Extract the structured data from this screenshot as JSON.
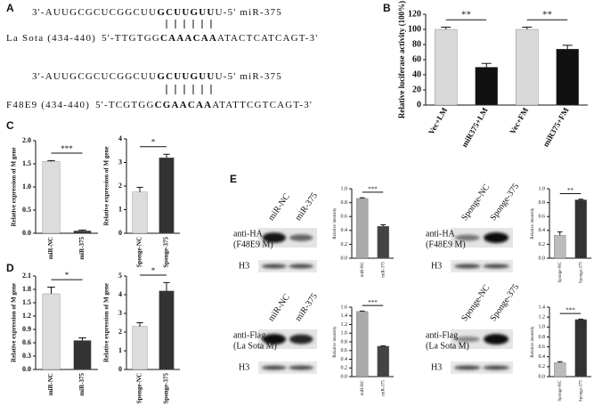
{
  "panel_labels": [
    "A",
    "B",
    "C",
    "D",
    "E"
  ],
  "panel_a": {
    "pairs": [
      {
        "mirna": {
          "prefix": "3'-AUUGCGCUCGGCUU",
          "seed": "GCUUGUU",
          "suffix": "U-5' miR-375"
        },
        "target": {
          "name": "La Sota (434-440)",
          "prefix": "5'-TTGTGG",
          "site": "CAAACAA",
          "suffix": "ATACTCATCAGT-3'"
        }
      },
      {
        "mirna": {
          "prefix": "3'-AUUGCGCUCGGCUU",
          "seed": "GCUUGUU",
          "suffix": "U-5' miR-375"
        },
        "target": {
          "name": "F48E9 (434-440)",
          "prefix": "5'-TCGTGG",
          "site": "CGAACAA",
          "suffix": "ATATTCGTCAGT-3'"
        }
      }
    ]
  },
  "panel_e": {
    "blots": [
      {
        "lanes": [
          "miR-NC",
          "miR-375"
        ],
        "antibody": "anti-HA",
        "target": "(F48E9 M)",
        "loading": "H3"
      },
      {
        "lanes": [
          "Sponge-NC",
          "Sponge-375"
        ],
        "antibody": "anti-HA",
        "target": "(F48E9 M)",
        "loading": "H3"
      },
      {
        "lanes": [
          "miR-NC",
          "miR-375"
        ],
        "antibody": "anti-Flag",
        "target": "(La Sota M)",
        "loading": "H3"
      },
      {
        "lanes": [
          "Sponge-NC",
          "Sponge-375"
        ],
        "antibody": "anti-Flag",
        "target": "(La Sota M)",
        "loading": "H3"
      }
    ]
  },
  "chart_data": [
    {
      "type": "bar",
      "ylabel": "Relative luciferase activity (100%)",
      "categories": [
        "Vec+LM",
        "miR375+LM",
        "Vec+FM",
        "miR375+FM"
      ],
      "values": [
        100,
        50,
        100,
        74
      ],
      "errors": [
        3,
        5,
        3,
        5
      ],
      "colors": [
        "#d9d9d9",
        "#111111",
        "#d9d9d9",
        "#111111"
      ],
      "ylim": [
        0,
        120
      ],
      "yticks": [
        0,
        20,
        40,
        60,
        80,
        100,
        120
      ],
      "annotations": [
        "**",
        "**"
      ]
    },
    {
      "type": "bar",
      "ylabel": "Relative expression of M gene",
      "categories": [
        "miR-NC",
        "miR-375"
      ],
      "values": [
        1.55,
        0.05
      ],
      "errors": [
        0.02,
        0.02
      ],
      "colors": [
        "#dcdcdc",
        "#333333"
      ],
      "ylim": [
        0,
        2.0
      ],
      "yticks": [
        {
          "value": 0,
          "label": "0.0"
        },
        {
          "value": 0.5,
          "label": "0.5"
        },
        {
          "value": 1,
          "label": "1.0"
        },
        {
          "value": 1.5,
          "label": "1.5"
        },
        {
          "value": 2,
          "label": "2.0"
        }
      ],
      "annotations": [
        "***"
      ]
    },
    {
      "type": "bar",
      "ylabel": "Relative expression of M gene",
      "categories": [
        "Sponge-NC",
        "Sponge-375"
      ],
      "values": [
        1.75,
        3.2
      ],
      "errors": [
        0.2,
        0.15
      ],
      "colors": [
        "#dcdcdc",
        "#333333"
      ],
      "ylim": [
        0,
        4
      ],
      "yticks": [
        0,
        1,
        2,
        3,
        4
      ],
      "annotations": [
        "*"
      ]
    },
    {
      "type": "bar",
      "ylabel": "Relative expression of M gene",
      "categories": [
        "miR-NC",
        "miR-375"
      ],
      "values": [
        1.7,
        0.65
      ],
      "errors": [
        0.15,
        0.06
      ],
      "colors": [
        "#dcdcdc",
        "#333333"
      ],
      "ylim": [
        0,
        2.1
      ],
      "yticks": [
        {
          "value": 0,
          "label": "0.0"
        },
        {
          "value": 0.3,
          "label": "0.3"
        },
        {
          "value": 0.6,
          "label": "0.6"
        },
        {
          "value": 0.9,
          "label": "0.9"
        },
        {
          "value": 1.2,
          "label": "1.2"
        },
        {
          "value": 1.5,
          "label": "1.5"
        },
        {
          "value": 1.8,
          "label": "1.8"
        },
        {
          "value": 2.1,
          "label": "2.1"
        }
      ],
      "annotations": [
        "*"
      ]
    },
    {
      "type": "bar",
      "ylabel": "Relative expression of M gene",
      "categories": [
        "Sponge-NC",
        "Sponge-375"
      ],
      "values": [
        2.3,
        4.2
      ],
      "errors": [
        0.2,
        0.45
      ],
      "colors": [
        "#dcdcdc",
        "#333333"
      ],
      "ylim": [
        0,
        5
      ],
      "yticks": [
        0,
        1,
        2,
        3,
        4,
        5
      ],
      "annotations": [
        "*"
      ]
    },
    {
      "type": "bar",
      "ylabel": "Relative intensity",
      "categories": [
        "miR-NC",
        "miR-375"
      ],
      "values": [
        0.86,
        0.46
      ],
      "errors": [
        0.01,
        0.02
      ],
      "colors": [
        "#aaaaaa",
        "#444444"
      ],
      "ylim": [
        0,
        1.0
      ],
      "yticks": [
        {
          "value": 0,
          "label": "0.0"
        },
        {
          "value": 0.2,
          "label": "0.2"
        },
        {
          "value": 0.4,
          "label": "0.4"
        },
        {
          "value": 0.6,
          "label": "0.6"
        },
        {
          "value": 0.8,
          "label": "0.8"
        },
        {
          "value": 1,
          "label": "1.0"
        }
      ],
      "annotations": [
        "***"
      ]
    },
    {
      "type": "bar",
      "ylabel": "Relative intensity",
      "categories": [
        "Sponge-NC",
        "Sponge-375"
      ],
      "values": [
        0.33,
        0.84
      ],
      "errors": [
        0.05,
        0.01
      ],
      "colors": [
        "#bbbbbb",
        "#333333"
      ],
      "ylim": [
        0,
        1.0
      ],
      "yticks": [
        {
          "value": 0,
          "label": "0.0"
        },
        {
          "value": 0.2,
          "label": "0.2"
        },
        {
          "value": 0.4,
          "label": "0.4"
        },
        {
          "value": 0.6,
          "label": "0.6"
        },
        {
          "value": 0.8,
          "label": "0.8"
        },
        {
          "value": 1,
          "label": "1.0"
        }
      ],
      "annotations": [
        "**"
      ]
    },
    {
      "type": "bar",
      "ylabel": "Relative intensity",
      "categories": [
        "miR-NC",
        "miR-375"
      ],
      "values": [
        1.5,
        0.7
      ],
      "errors": [
        0.01,
        0.01
      ],
      "colors": [
        "#aaaaaa",
        "#444444"
      ],
      "ylim": [
        0,
        1.6
      ],
      "yticks": [
        {
          "value": 0,
          "label": "0.0"
        },
        {
          "value": 0.2,
          "label": "0.2"
        },
        {
          "value": 0.4,
          "label": "0.4"
        },
        {
          "value": 0.6,
          "label": "0.6"
        },
        {
          "value": 0.8,
          "label": "0.8"
        },
        {
          "value": 1,
          "label": "1.0"
        },
        {
          "value": 1.2,
          "label": "1.2"
        },
        {
          "value": 1.4,
          "label": "1.4"
        },
        {
          "value": 1.6,
          "label": "1.6"
        }
      ],
      "annotations": [
        "***"
      ]
    },
    {
      "type": "bar",
      "ylabel": "Relative intensity",
      "categories": [
        "Sponge-NC",
        "Sponge-375"
      ],
      "values": [
        0.28,
        1.15
      ],
      "errors": [
        0.02,
        0.01
      ],
      "colors": [
        "#bbbbbb",
        "#333333"
      ],
      "ylim": [
        0,
        1.4
      ],
      "yticks": [
        {
          "value": 0,
          "label": "0.0"
        },
        {
          "value": 0.2,
          "label": "0.2"
        },
        {
          "value": 0.4,
          "label": "0.4"
        },
        {
          "value": 0.6,
          "label": "0.6"
        },
        {
          "value": 0.8,
          "label": "0.8"
        },
        {
          "value": 1,
          "label": "1.0"
        },
        {
          "value": 1.2,
          "label": "1.2"
        },
        {
          "value": 1.4,
          "label": "1.4"
        }
      ],
      "annotations": [
        "***"
      ]
    }
  ]
}
